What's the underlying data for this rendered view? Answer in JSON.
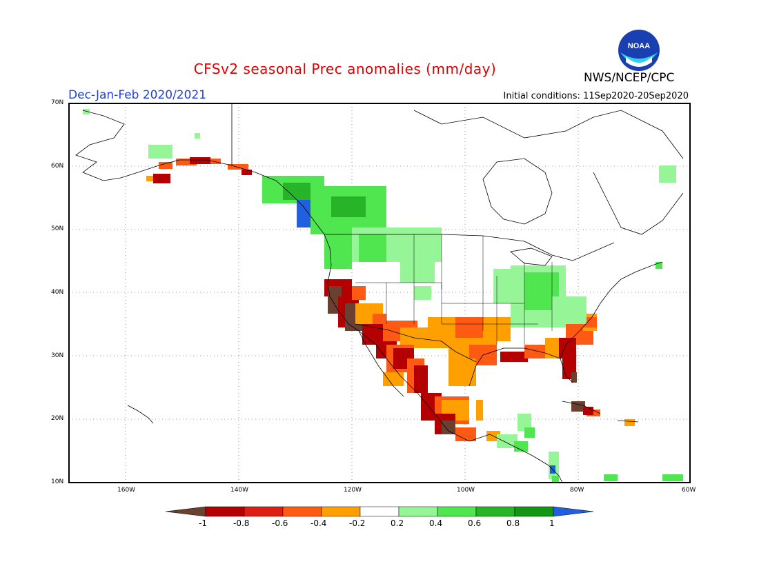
{
  "header": {
    "title": "CFSv2 seasonal Prec anomalies (mm/day)",
    "season": "Dec-Jan-Feb 2020/2021",
    "initial_conditions": "Initial conditions: 11Sep2020-20Sep2020",
    "agency": "NWS/NCEP/CPC",
    "logo_text": "NOAA"
  },
  "axes": {
    "lat_labels": [
      "70N",
      "60N",
      "50N",
      "40N",
      "30N",
      "20N",
      "10N"
    ],
    "lon_labels": [
      "160W",
      "140W",
      "120W",
      "100W",
      "80W",
      "60W"
    ]
  },
  "colorbar": {
    "labels": [
      "-1",
      "-0.8",
      "-0.6",
      "-0.4",
      "-0.2",
      "0.2",
      "0.4",
      "0.6",
      "0.8",
      "1"
    ],
    "colors": [
      "#6b4030",
      "#b40000",
      "#dc1e14",
      "#ff5a14",
      "#ffa000",
      "#ffffff",
      "#96f596",
      "#50e650",
      "#28b428",
      "#149614",
      "#2060e0"
    ]
  },
  "colors": {
    "dry_strong": "#6b4030",
    "dry_very": "#b40000",
    "dry_mod": "#dc1e14",
    "dry_light": "#ff5a14",
    "dry_slight": "#ffa000",
    "wet_slight": "#96f596",
    "wet_light": "#50e650",
    "wet_mod": "#28b428",
    "wet_very": "#149614",
    "wet_strong": "#2060e0"
  }
}
